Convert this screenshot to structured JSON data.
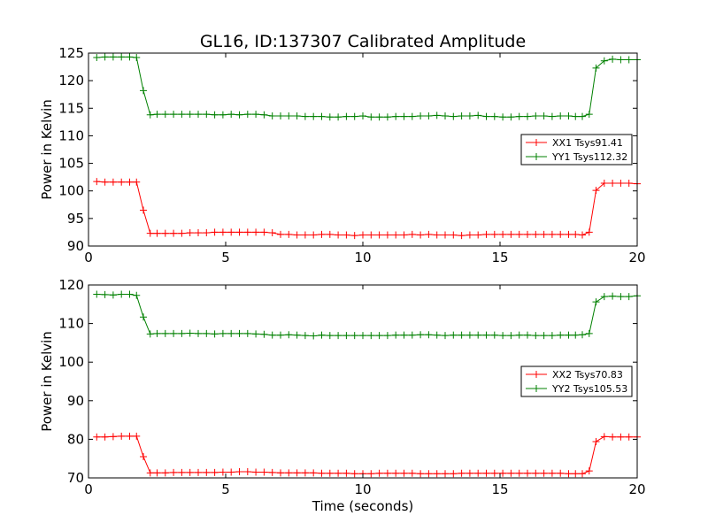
{
  "figure": {
    "title": "GL16, ID:137307 Calibrated Amplitude"
  },
  "chart_data": [
    {
      "type": "line",
      "xlabel": "",
      "ylabel": "Power in Kelvin",
      "xlim": [
        0,
        20
      ],
      "ylim": [
        90,
        125
      ],
      "xticks": [
        0,
        5,
        10,
        15,
        20
      ],
      "yticks": [
        90,
        95,
        100,
        105,
        110,
        115,
        120,
        125
      ],
      "grid": false,
      "legend_placement": "center-right",
      "x": [
        0.3,
        0.6,
        0.9,
        1.2,
        1.5,
        1.75,
        2.0,
        2.25,
        2.5,
        2.8,
        3.1,
        3.4,
        3.7,
        4.0,
        4.3,
        4.6,
        4.9,
        5.2,
        5.5,
        5.8,
        6.1,
        6.4,
        6.7,
        7.0,
        7.3,
        7.6,
        7.9,
        8.2,
        8.5,
        8.8,
        9.1,
        9.4,
        9.7,
        10.0,
        10.3,
        10.6,
        10.9,
        11.2,
        11.5,
        11.8,
        12.1,
        12.4,
        12.7,
        13.0,
        13.3,
        13.6,
        13.9,
        14.2,
        14.5,
        14.8,
        15.1,
        15.4,
        15.7,
        16.0,
        16.3,
        16.6,
        16.9,
        17.2,
        17.5,
        17.75,
        18.0,
        18.25,
        18.5,
        18.8,
        19.1,
        19.4,
        19.7,
        20.0
      ],
      "series": [
        {
          "name": "XX1 Tsys91.41",
          "color": "#ff0000",
          "values": [
            101.7,
            101.6,
            101.6,
            101.6,
            101.6,
            101.6,
            96.5,
            92.3,
            92.3,
            92.3,
            92.3,
            92.3,
            92.4,
            92.4,
            92.4,
            92.5,
            92.5,
            92.5,
            92.5,
            92.5,
            92.5,
            92.5,
            92.4,
            92.1,
            92.1,
            92.0,
            92.0,
            92.0,
            92.1,
            92.1,
            92.0,
            92.0,
            91.9,
            92.0,
            92.0,
            92.0,
            92.0,
            92.0,
            92.0,
            92.1,
            92.0,
            92.1,
            92.0,
            92.0,
            92.0,
            91.9,
            92.0,
            92.0,
            92.1,
            92.1,
            92.1,
            92.1,
            92.1,
            92.1,
            92.1,
            92.1,
            92.1,
            92.1,
            92.1,
            92.1,
            92.0,
            92.5,
            100.1,
            101.4,
            101.4,
            101.4,
            101.4,
            101.3
          ]
        },
        {
          "name": "YY1 Tsys112.32",
          "color": "#008000",
          "values": [
            124.2,
            124.3,
            124.3,
            124.3,
            124.3,
            124.2,
            118.2,
            113.8,
            113.9,
            113.9,
            113.9,
            113.9,
            113.9,
            113.9,
            113.9,
            113.8,
            113.8,
            113.9,
            113.8,
            113.9,
            113.9,
            113.8,
            113.6,
            113.6,
            113.6,
            113.6,
            113.5,
            113.5,
            113.5,
            113.4,
            113.4,
            113.5,
            113.5,
            113.6,
            113.4,
            113.4,
            113.4,
            113.5,
            113.5,
            113.5,
            113.6,
            113.6,
            113.7,
            113.6,
            113.5,
            113.6,
            113.6,
            113.7,
            113.5,
            113.5,
            113.4,
            113.4,
            113.5,
            113.5,
            113.6,
            113.6,
            113.5,
            113.6,
            113.6,
            113.5,
            113.5,
            113.9,
            122.3,
            123.6,
            123.9,
            123.8,
            123.8,
            123.8
          ]
        }
      ]
    },
    {
      "type": "line",
      "xlabel": "Time (seconds)",
      "ylabel": "Power in Kelvin",
      "xlim": [
        0,
        20
      ],
      "ylim": [
        70,
        120
      ],
      "xticks": [
        0,
        5,
        10,
        15,
        20
      ],
      "yticks": [
        70,
        80,
        90,
        100,
        110,
        120
      ],
      "grid": false,
      "legend_placement": "center-right",
      "x": [
        0.3,
        0.6,
        0.9,
        1.2,
        1.5,
        1.75,
        2.0,
        2.25,
        2.5,
        2.8,
        3.1,
        3.4,
        3.7,
        4.0,
        4.3,
        4.6,
        4.9,
        5.2,
        5.5,
        5.8,
        6.1,
        6.4,
        6.7,
        7.0,
        7.3,
        7.6,
        7.9,
        8.2,
        8.5,
        8.8,
        9.1,
        9.4,
        9.7,
        10.0,
        10.3,
        10.6,
        10.9,
        11.2,
        11.5,
        11.8,
        12.1,
        12.4,
        12.7,
        13.0,
        13.3,
        13.6,
        13.9,
        14.2,
        14.5,
        14.8,
        15.1,
        15.4,
        15.7,
        16.0,
        16.3,
        16.6,
        16.9,
        17.2,
        17.5,
        17.75,
        18.0,
        18.25,
        18.5,
        18.8,
        19.1,
        19.4,
        19.7,
        20.0
      ],
      "series": [
        {
          "name": "XX2 Tsys70.83",
          "color": "#ff0000",
          "values": [
            80.6,
            80.6,
            80.7,
            80.8,
            80.8,
            80.8,
            75.5,
            71.3,
            71.3,
            71.3,
            71.4,
            71.4,
            71.4,
            71.4,
            71.4,
            71.4,
            71.5,
            71.5,
            71.6,
            71.6,
            71.5,
            71.5,
            71.4,
            71.3,
            71.3,
            71.3,
            71.3,
            71.3,
            71.2,
            71.2,
            71.2,
            71.2,
            71.1,
            71.1,
            71.1,
            71.2,
            71.2,
            71.2,
            71.2,
            71.2,
            71.1,
            71.1,
            71.1,
            71.1,
            71.1,
            71.2,
            71.2,
            71.2,
            71.2,
            71.2,
            71.2,
            71.2,
            71.2,
            71.2,
            71.2,
            71.2,
            71.2,
            71.2,
            71.1,
            71.1,
            71.1,
            71.8,
            79.4,
            80.7,
            80.6,
            80.6,
            80.6,
            80.6
          ]
        },
        {
          "name": "YY2 Tsys105.53",
          "color": "#008000",
          "values": [
            117.6,
            117.5,
            117.4,
            117.6,
            117.6,
            117.3,
            111.7,
            107.3,
            107.4,
            107.4,
            107.4,
            107.4,
            107.5,
            107.4,
            107.4,
            107.3,
            107.4,
            107.4,
            107.4,
            107.4,
            107.3,
            107.2,
            107.0,
            107.0,
            107.1,
            107.0,
            106.9,
            106.8,
            107.0,
            106.9,
            106.9,
            106.9,
            106.9,
            106.9,
            106.9,
            106.9,
            106.9,
            107.0,
            107.0,
            107.0,
            107.1,
            107.1,
            107.0,
            106.9,
            107.0,
            107.0,
            107.0,
            107.0,
            107.0,
            107.0,
            106.9,
            106.9,
            107.0,
            107.0,
            106.9,
            106.9,
            106.9,
            107.0,
            107.0,
            107.0,
            107.1,
            107.4,
            115.6,
            117.0,
            117.1,
            117.0,
            117.0,
            117.2
          ]
        }
      ]
    }
  ]
}
